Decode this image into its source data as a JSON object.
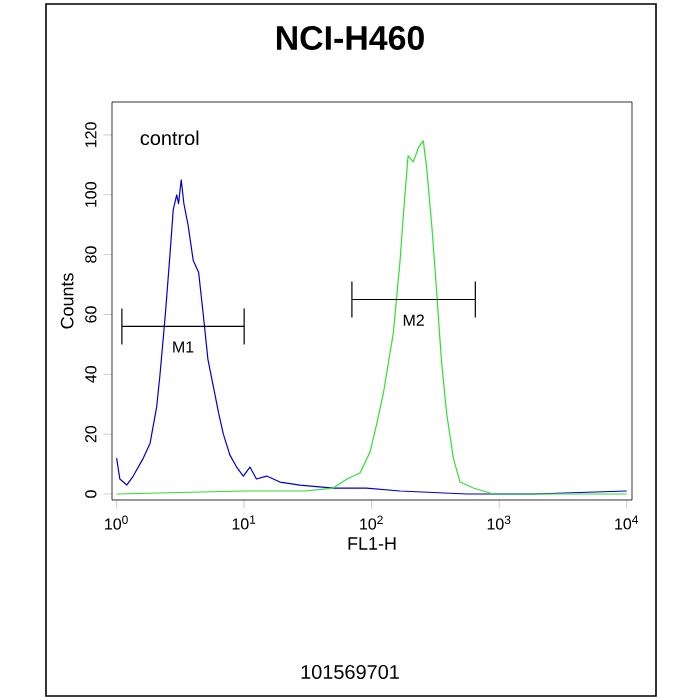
{
  "chart_data": {
    "type": "line",
    "title": "NCI-H460",
    "xlabel": "FL1-H",
    "ylabel": "Counts",
    "log": "x",
    "xlim": [
      0.92,
      11000
    ],
    "ylim": [
      -2,
      131
    ],
    "xticks": [
      {
        "value": 1,
        "label": "10$^{0}$"
      },
      {
        "value": 10,
        "label": "10$^{1}$"
      },
      {
        "value": 100,
        "label": "10$^{2}$"
      },
      {
        "value": 1000,
        "label": "10$^{3}$"
      },
      {
        "value": 10000,
        "label": "10$^{4}$"
      }
    ],
    "yticks": [
      0,
      20,
      40,
      60,
      80,
      100,
      120
    ],
    "annotations": [
      "control",
      "101569701"
    ],
    "series": [
      {
        "color": "#0000cc",
        "x": [
          1.0,
          1.06,
          1.2,
          1.35,
          1.62,
          1.83,
          2.06,
          2.19,
          2.41,
          2.62,
          2.78,
          2.96,
          3.06,
          3.21,
          3.37,
          3.63,
          3.99,
          4.4,
          4.78,
          5.2,
          5.73,
          6.31,
          6.87,
          7.74,
          8.73,
          9.85,
          11.1,
          12.5,
          15.0,
          19.1,
          27.4,
          50,
          91,
          167,
          556,
          1850,
          10000
        ],
        "values": [
          12,
          5,
          3,
          6,
          12,
          17,
          29,
          40,
          60,
          80,
          95,
          100,
          97,
          105,
          97,
          90,
          78,
          74,
          60,
          45,
          36,
          27,
          20,
          13,
          9,
          6,
          9,
          5,
          6,
          4,
          3,
          2,
          2,
          1,
          0,
          0,
          1
        ]
      },
      {
        "color": "#33dd33",
        "x": [
          1.0,
          10,
          30,
          50,
          64,
          81,
          97,
          109,
          124,
          148,
          167,
          177,
          193,
          212,
          234,
          254,
          270,
          297,
          324,
          352,
          387,
          437,
          493,
          627,
          900,
          10000
        ],
        "values": [
          0,
          1,
          1,
          2,
          5,
          7,
          14,
          23,
          34,
          54,
          78,
          93,
          113,
          111,
          116,
          118,
          109,
          89,
          67,
          45,
          27,
          12,
          4,
          2,
          0,
          0
        ]
      },
      {
        "name": "M1",
        "color": "#000000",
        "x": [
          1.1,
          10
        ],
        "values": [
          56,
          56
        ],
        "errors": [
          6,
          6
        ]
      },
      {
        "name": "M2",
        "color": "#000000",
        "x": [
          70,
          650
        ],
        "values": [
          65,
          65
        ],
        "errors": [
          6,
          6
        ]
      }
    ]
  }
}
